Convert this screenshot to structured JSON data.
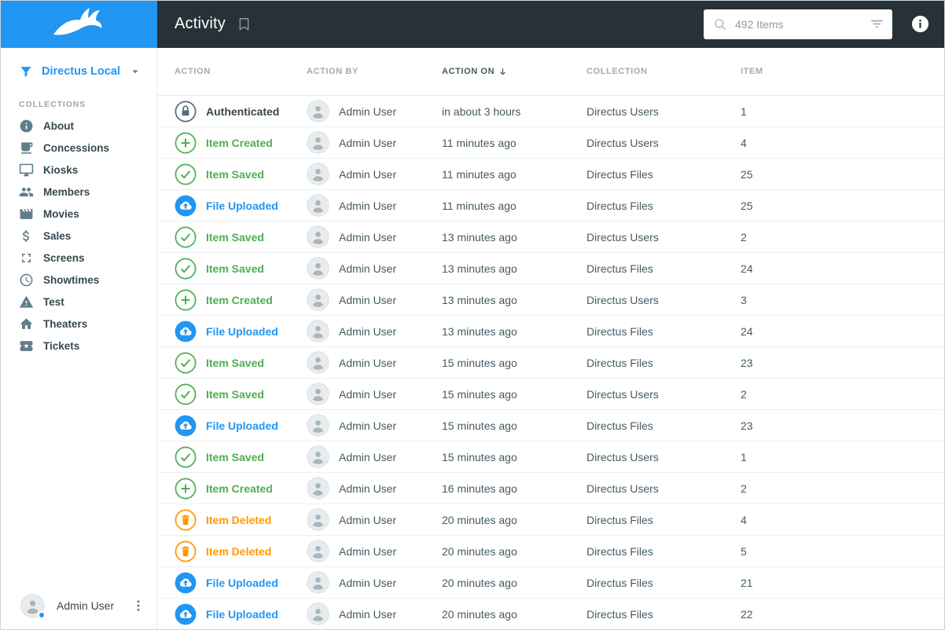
{
  "colors": {
    "accent": "#2196f3",
    "topbar": "#263238",
    "green": "#4caf50",
    "orange": "#ff9800"
  },
  "topbar": {
    "title": "Activity",
    "search_value": "492 Items"
  },
  "sidebar": {
    "project_label": "Directus Local",
    "collections_label": "COLLECTIONS",
    "items": [
      {
        "label": "About",
        "icon": "info-icon"
      },
      {
        "label": "Concessions",
        "icon": "drink-cup-icon"
      },
      {
        "label": "Kiosks",
        "icon": "monitor-icon"
      },
      {
        "label": "Members",
        "icon": "people-icon"
      },
      {
        "label": "Movies",
        "icon": "movie-icon"
      },
      {
        "label": "Sales",
        "icon": "dollar-icon"
      },
      {
        "label": "Screens",
        "icon": "fullscreen-icon"
      },
      {
        "label": "Showtimes",
        "icon": "clock-icon"
      },
      {
        "label": "Test",
        "icon": "warning-icon"
      },
      {
        "label": "Theaters",
        "icon": "home-icon"
      },
      {
        "label": "Tickets",
        "icon": "ticket-icon"
      }
    ],
    "user": {
      "name": "Admin User"
    }
  },
  "table": {
    "columns": [
      {
        "label": "ACTION"
      },
      {
        "label": "ACTION BY"
      },
      {
        "label": "ACTION ON",
        "sorted": true
      },
      {
        "label": "COLLECTION"
      },
      {
        "label": "ITEM"
      }
    ],
    "rows": [
      {
        "action": "Authenticated",
        "type": "authenticated",
        "icon": "lock-icon",
        "by": "Admin User",
        "on": "in about 3 hours",
        "collection": "Directus Users",
        "item": "1"
      },
      {
        "action": "Item Created",
        "type": "created",
        "icon": "plus-icon",
        "by": "Admin User",
        "on": "11 minutes ago",
        "collection": "Directus Users",
        "item": "4"
      },
      {
        "action": "Item Saved",
        "type": "saved",
        "icon": "check-icon",
        "by": "Admin User",
        "on": "11 minutes ago",
        "collection": "Directus Files",
        "item": "25"
      },
      {
        "action": "File Uploaded",
        "type": "uploaded",
        "icon": "cloud-upload-icon",
        "by": "Admin User",
        "on": "11 minutes ago",
        "collection": "Directus Files",
        "item": "25"
      },
      {
        "action": "Item Saved",
        "type": "saved",
        "icon": "check-icon",
        "by": "Admin User",
        "on": "13 minutes ago",
        "collection": "Directus Users",
        "item": "2"
      },
      {
        "action": "Item Saved",
        "type": "saved",
        "icon": "check-icon",
        "by": "Admin User",
        "on": "13 minutes ago",
        "collection": "Directus Files",
        "item": "24"
      },
      {
        "action": "Item Created",
        "type": "created",
        "icon": "plus-icon",
        "by": "Admin User",
        "on": "13 minutes ago",
        "collection": "Directus Users",
        "item": "3"
      },
      {
        "action": "File Uploaded",
        "type": "uploaded",
        "icon": "cloud-upload-icon",
        "by": "Admin User",
        "on": "13 minutes ago",
        "collection": "Directus Files",
        "item": "24"
      },
      {
        "action": "Item Saved",
        "type": "saved",
        "icon": "check-icon",
        "by": "Admin User",
        "on": "15 minutes ago",
        "collection": "Directus Files",
        "item": "23"
      },
      {
        "action": "Item Saved",
        "type": "saved",
        "icon": "check-icon",
        "by": "Admin User",
        "on": "15 minutes ago",
        "collection": "Directus Users",
        "item": "2"
      },
      {
        "action": "File Uploaded",
        "type": "uploaded",
        "icon": "cloud-upload-icon",
        "by": "Admin User",
        "on": "15 minutes ago",
        "collection": "Directus Files",
        "item": "23"
      },
      {
        "action": "Item Saved",
        "type": "saved",
        "icon": "check-icon",
        "by": "Admin User",
        "on": "15 minutes ago",
        "collection": "Directus Users",
        "item": "1"
      },
      {
        "action": "Item Created",
        "type": "created",
        "icon": "plus-icon",
        "by": "Admin User",
        "on": "16 minutes ago",
        "collection": "Directus Users",
        "item": "2"
      },
      {
        "action": "Item Deleted",
        "type": "deleted",
        "icon": "trash-icon",
        "by": "Admin User",
        "on": "20 minutes ago",
        "collection": "Directus Files",
        "item": "4"
      },
      {
        "action": "Item Deleted",
        "type": "deleted",
        "icon": "trash-icon",
        "by": "Admin User",
        "on": "20 minutes ago",
        "collection": "Directus Files",
        "item": "5"
      },
      {
        "action": "File Uploaded",
        "type": "uploaded",
        "icon": "cloud-upload-icon",
        "by": "Admin User",
        "on": "20 minutes ago",
        "collection": "Directus Files",
        "item": "21"
      },
      {
        "action": "File Uploaded",
        "type": "uploaded",
        "icon": "cloud-upload-icon",
        "by": "Admin User",
        "on": "20 minutes ago",
        "collection": "Directus Files",
        "item": "22"
      }
    ]
  }
}
